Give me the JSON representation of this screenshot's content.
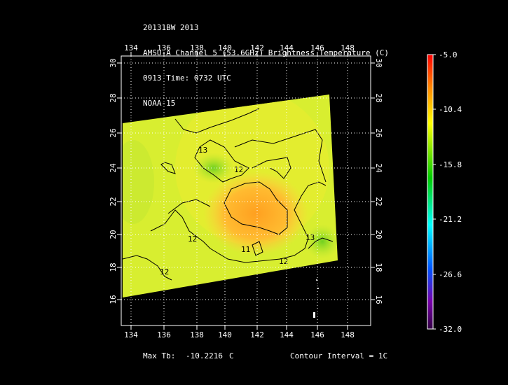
{
  "header": {
    "line1": "20131BW 2013",
    "line2": "AMSU-A Channel 5 (53.6GHz) Brightness Temperature (C)",
    "line3": "0913 Time: 0732 UTC",
    "line4": "NOAA-15"
  },
  "axes": {
    "lon_ticks": [
      "134",
      "136",
      "138",
      "140",
      "142",
      "144",
      "146",
      "148"
    ],
    "lat_ticks": [
      "16",
      "18",
      "20",
      "22",
      "24",
      "26",
      "28",
      "30"
    ]
  },
  "colorbar": {
    "labels": [
      "-5.0",
      "-10.4",
      "-15.8",
      "-21.2",
      "-26.6",
      "-32.0"
    ],
    "colors": [
      "#ff0000",
      "#ff8800",
      "#ffff00",
      "#00cc00",
      "#00ffff",
      "#0055ff",
      "#7700aa",
      "#330044"
    ]
  },
  "contours": {
    "labels": [
      "13",
      "12",
      "12",
      "11",
      "12",
      "13",
      "12"
    ]
  },
  "footer": {
    "max_tb_label": "Max Tb:",
    "max_tb_value": "-10.2216",
    "max_tb_unit": "C",
    "contour_interval": "Contour Interval = 1C"
  }
}
